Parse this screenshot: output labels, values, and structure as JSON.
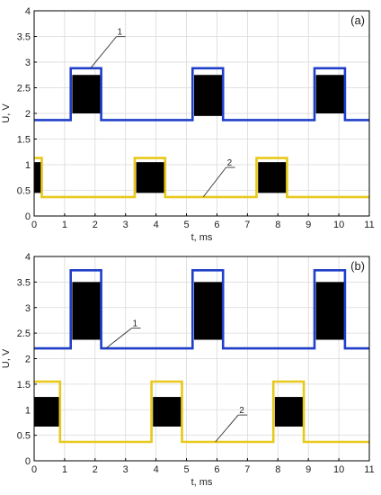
{
  "colors": {
    "series_1": "#1f3fc8",
    "series_2": "#e8c81a",
    "pulse": "#000000",
    "grid": "#d9d9d9",
    "axis": "#000000"
  },
  "chart_data": [
    {
      "type": "line",
      "panel_label": "(a)",
      "xlabel": "t, ms",
      "ylabel": "U, V",
      "xlim": [
        0,
        11
      ],
      "ylim": [
        0,
        4
      ],
      "xticks": [
        "0",
        "1",
        "2",
        "3",
        "4",
        "5",
        "6",
        "7",
        "8",
        "9",
        "10",
        "11"
      ],
      "yticks": [
        "0",
        "0.5",
        "1",
        "1.5",
        "2",
        "2.5",
        "3",
        "3.5",
        "4"
      ],
      "grid": true,
      "series": [
        {
          "name": "1",
          "color_key": "series_1",
          "x": [
            0,
            1.2,
            1.2,
            2.2,
            2.2,
            5.2,
            5.2,
            6.2,
            6.2,
            9.2,
            9.2,
            10.2,
            10.2,
            11
          ],
          "y": [
            1.87,
            1.87,
            2.88,
            2.88,
            1.87,
            1.87,
            2.88,
            2.88,
            1.87,
            1.87,
            2.88,
            2.88,
            1.87,
            1.87
          ],
          "pulses": [
            {
              "x0": 1.25,
              "x1": 2.2,
              "y0": 2.0,
              "y1": 2.75
            },
            {
              "x0": 5.25,
              "x1": 6.2,
              "y0": 1.95,
              "y1": 2.75
            },
            {
              "x0": 9.25,
              "x1": 10.2,
              "y0": 2.0,
              "y1": 2.75
            }
          ],
          "callout": {
            "x": 2.7,
            "y": 3.55
          }
        },
        {
          "name": "2",
          "color_key": "series_2",
          "x": [
            0,
            0.25,
            0.25,
            3.3,
            3.3,
            4.3,
            4.3,
            7.3,
            7.3,
            8.3,
            8.3,
            11
          ],
          "y": [
            1.13,
            1.13,
            0.37,
            0.37,
            1.13,
            1.13,
            0.37,
            0.37,
            1.13,
            1.13,
            0.37,
            0.37
          ],
          "pulses": [
            {
              "x0": 0,
              "x1": 0.25,
              "y0": 0.45,
              "y1": 1.05
            },
            {
              "x0": 3.35,
              "x1": 4.3,
              "y0": 0.45,
              "y1": 1.05
            },
            {
              "x0": 7.35,
              "x1": 8.3,
              "y0": 0.45,
              "y1": 1.05
            }
          ],
          "callout": {
            "x": 6.3,
            "y": 1.0
          }
        }
      ]
    },
    {
      "type": "line",
      "panel_label": "(b)",
      "xlabel": "t, ms",
      "ylabel": "U, V",
      "xlim": [
        0,
        11
      ],
      "ylim": [
        0,
        4
      ],
      "xticks": [
        "0",
        "1",
        "2",
        "3",
        "4",
        "5",
        "6",
        "7",
        "8",
        "9",
        "10",
        "11"
      ],
      "yticks": [
        "0",
        "0.5",
        "1",
        "1.5",
        "2",
        "2.5",
        "3",
        "3.5",
        "4"
      ],
      "grid": true,
      "series": [
        {
          "name": "1",
          "color_key": "series_1",
          "x": [
            0,
            1.2,
            1.2,
            2.2,
            2.2,
            5.2,
            5.2,
            6.2,
            6.2,
            9.2,
            9.2,
            10.2,
            10.2,
            11
          ],
          "y": [
            2.2,
            2.2,
            3.73,
            3.73,
            2.2,
            2.2,
            3.73,
            3.73,
            2.2,
            2.2,
            3.73,
            3.73,
            2.2,
            2.2
          ],
          "pulses": [
            {
              "x0": 1.25,
              "x1": 2.2,
              "y0": 2.37,
              "y1": 3.5
            },
            {
              "x0": 5.25,
              "x1": 6.2,
              "y0": 2.37,
              "y1": 3.5
            },
            {
              "x0": 9.25,
              "x1": 10.2,
              "y0": 2.37,
              "y1": 3.5
            }
          ],
          "callout": {
            "x": 3.2,
            "y": 2.65
          }
        },
        {
          "name": "2",
          "color_key": "series_2",
          "x": [
            0,
            0.85,
            0.85,
            3.85,
            3.85,
            4.85,
            4.85,
            7.85,
            7.85,
            8.85,
            8.85,
            11
          ],
          "y": [
            1.55,
            1.55,
            0.37,
            0.37,
            1.55,
            1.55,
            0.37,
            0.37,
            1.55,
            1.55,
            0.37,
            0.37
          ],
          "pulses": [
            {
              "x0": 0,
              "x1": 0.85,
              "y0": 0.67,
              "y1": 1.25
            },
            {
              "x0": 3.9,
              "x1": 4.85,
              "y0": 0.67,
              "y1": 1.25
            },
            {
              "x0": 7.9,
              "x1": 8.85,
              "y0": 0.67,
              "y1": 1.25
            }
          ],
          "callout": {
            "x": 6.7,
            "y": 0.95
          }
        }
      ]
    }
  ]
}
